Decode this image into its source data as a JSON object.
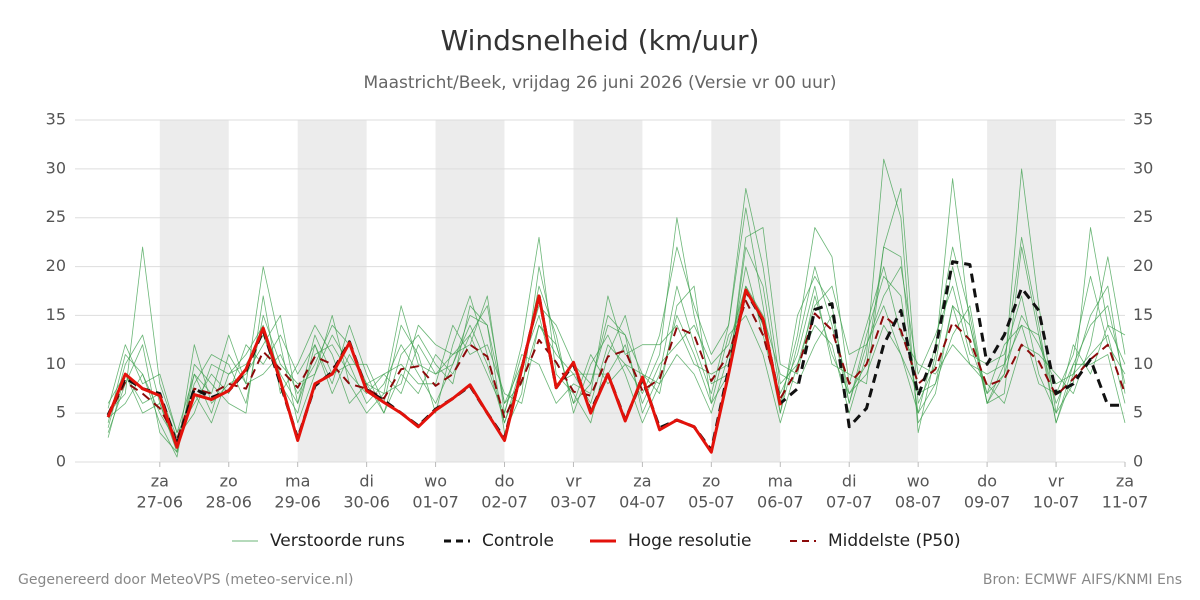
{
  "chart_data": {
    "type": "line",
    "title": "Windsnelheid (km/uur)",
    "subtitle": "Maastricht/Beek, vrijdag 26 juni 2026 (Versie vr 00 uur)",
    "footer_left": "Gegenereerd door MeteoVPS (meteo-service.nl)",
    "footer_right": "Bron: ECMWF AIFS/KNMI Ens",
    "shade_alternate_days": true,
    "grid": true,
    "legend": "bottom",
    "xlim": [
      -0.23,
      15
    ],
    "ylim": [
      0,
      35
    ],
    "yticks": [
      0,
      5,
      10,
      15,
      20,
      25,
      30,
      35
    ],
    "xticks": [
      {
        "value": 1,
        "label": [
          "za",
          "27-06"
        ]
      },
      {
        "value": 2,
        "label": [
          "zo",
          "28-06"
        ]
      },
      {
        "value": 3,
        "label": [
          "ma",
          "29-06"
        ]
      },
      {
        "value": 4,
        "label": [
          "di",
          "30-06"
        ]
      },
      {
        "value": 5,
        "label": [
          "wo",
          "01-07"
        ]
      },
      {
        "value": 6,
        "label": [
          "do",
          "02-07"
        ]
      },
      {
        "value": 7,
        "label": [
          "vr",
          "03-07"
        ]
      },
      {
        "value": 8,
        "label": [
          "za",
          "04-07"
        ]
      },
      {
        "value": 9,
        "label": [
          "zo",
          "05-07"
        ]
      },
      {
        "value": 10,
        "label": [
          "ma",
          "06-07"
        ]
      },
      {
        "value": 11,
        "label": [
          "di",
          "07-07"
        ]
      },
      {
        "value": 12,
        "label": [
          "wo",
          "08-07"
        ]
      },
      {
        "value": 13,
        "label": [
          "do",
          "09-07"
        ]
      },
      {
        "value": 14,
        "label": [
          "vr",
          "10-07"
        ]
      },
      {
        "value": 15,
        "label": [
          "za",
          "11-07"
        ]
      }
    ],
    "x": [
      0.25,
      0.5,
      0.75,
      1,
      1.25,
      1.5,
      1.75,
      2,
      2.25,
      2.5,
      2.75,
      3,
      3.25,
      3.5,
      3.75,
      4,
      4.25,
      4.5,
      4.75,
      5,
      5.25,
      5.5,
      5.75,
      6,
      6.25,
      6.5,
      6.75,
      7,
      7.25,
      7.5,
      7.75,
      8,
      8.25,
      8.5,
      8.75,
      9,
      9.25,
      9.5,
      9.75,
      10,
      10.25,
      10.5,
      10.75,
      11,
      11.25,
      11.5,
      11.75,
      12,
      12.25,
      12.5,
      12.75,
      13,
      13.25,
      13.5,
      13.75,
      14,
      14.25,
      14.5,
      14.75,
      15
    ],
    "series": [
      {
        "name": "Verstoorde runs",
        "color": "#3a9e4a",
        "dash": "solid",
        "width": 0.8,
        "members": [
          [
            3.5,
            10,
            13,
            6,
            1,
            9,
            5,
            11,
            8,
            20,
            12,
            4,
            9,
            13,
            10,
            6,
            8,
            12,
            9,
            6,
            10,
            15,
            14,
            3,
            7,
            20,
            12,
            6,
            8,
            14,
            13,
            5,
            9,
            18,
            12,
            7,
            14,
            26,
            16,
            5,
            12,
            20,
            14,
            6,
            13,
            19,
            17,
            5,
            12,
            22,
            15,
            6,
            10,
            23,
            14,
            4,
            10,
            14,
            16,
            8
          ],
          [
            5,
            7,
            22,
            8,
            3,
            6,
            9,
            7,
            12,
            10,
            13,
            9,
            12,
            8,
            14,
            9,
            5,
            11,
            13,
            10,
            8,
            16,
            14,
            6,
            10,
            15,
            8,
            9,
            6,
            12,
            10,
            9,
            7,
            16,
            18,
            6,
            9,
            22,
            18,
            7,
            11,
            18,
            10,
            9,
            8,
            22,
            21,
            4,
            7,
            16,
            10,
            8,
            6,
            12,
            11,
            9,
            7,
            12,
            21,
            11
          ],
          [
            4,
            11,
            9,
            4,
            0.5,
            10,
            8,
            6,
            5,
            17,
            7,
            10,
            14,
            11,
            6,
            8,
            7,
            8,
            14,
            12,
            11,
            13,
            9,
            5,
            12,
            23,
            9,
            7,
            4,
            11,
            15,
            8,
            13,
            22,
            16,
            11,
            14,
            28,
            20,
            8,
            10,
            16,
            18,
            11,
            12,
            17,
            20,
            9,
            13,
            18,
            11,
            10,
            11,
            17,
            9,
            5,
            12,
            9,
            14,
            10
          ],
          [
            6,
            9,
            6,
            7,
            2.5,
            5,
            10,
            9,
            11,
            14,
            9,
            6,
            11,
            12,
            9,
            7,
            9,
            10,
            8,
            8,
            14,
            11,
            12,
            7,
            6,
            14,
            11,
            9,
            9,
            9,
            12,
            6,
            10,
            12,
            14,
            10,
            12,
            18,
            15,
            9,
            8,
            12,
            15,
            7,
            9,
            14,
            11,
            7,
            8,
            13,
            16,
            6,
            9,
            15,
            12,
            8,
            9,
            11,
            13,
            6
          ],
          [
            3,
            8,
            12,
            3,
            1,
            12,
            6,
            8,
            9,
            12,
            15,
            6,
            13,
            9,
            10,
            10,
            6,
            14,
            11,
            5,
            12,
            17,
            11,
            4,
            9,
            18,
            13,
            5,
            10,
            13,
            9,
            4,
            8,
            15,
            11,
            6,
            13,
            15,
            11,
            4,
            10,
            14,
            12,
            5,
            11,
            31,
            25,
            3,
            11,
            29,
            14,
            6,
            7,
            22,
            13,
            4,
            9,
            15,
            18,
            7
          ],
          [
            4.5,
            6,
            9,
            5,
            2,
            8,
            11,
            10,
            6,
            15,
            10,
            8,
            9,
            15,
            8,
            5,
            7,
            16,
            10,
            9,
            11,
            12,
            17,
            5,
            11,
            10,
            6,
            8,
            7,
            17,
            11,
            12,
            12,
            14,
            10,
            9,
            10,
            20,
            13,
            6,
            13,
            24,
            21,
            8,
            14,
            20,
            13,
            10,
            9,
            12,
            10,
            9,
            10,
            14,
            8,
            7,
            11,
            19,
            12,
            9
          ],
          [
            5.5,
            12,
            8,
            9,
            3,
            9,
            7,
            13,
            8,
            9,
            11,
            7,
            10,
            14,
            12,
            8,
            5,
            9,
            7,
            11,
            9,
            13,
            16,
            6,
            8,
            14,
            12,
            6,
            11,
            8,
            10,
            7,
            11,
            25,
            15,
            8,
            9,
            23,
            24,
            10,
            9,
            17,
            11,
            7,
            10,
            22,
            28,
            6,
            10,
            20,
            12,
            7,
            9,
            30,
            16,
            5,
            8,
            24,
            14,
            13
          ],
          [
            2.5,
            9,
            5,
            6,
            1.5,
            7,
            4,
            9,
            10,
            13,
            8,
            5,
            12,
            7,
            11,
            8,
            9,
            7,
            12,
            9,
            10,
            14,
            10,
            4,
            10,
            16,
            14,
            10,
            8,
            15,
            13,
            9,
            8,
            11,
            9,
            5,
            11,
            18,
            14,
            5,
            15,
            19,
            16,
            6,
            12,
            16,
            11,
            5,
            8,
            16,
            14,
            7,
            12,
            14,
            13,
            6,
            10,
            10,
            11,
            4
          ]
        ]
      },
      {
        "name": "Controle",
        "color": "#111111",
        "dash": "dashed",
        "width": 3,
        "values": [
          4.8,
          8.6,
          7.5,
          7,
          1.8,
          7.5,
          6.6,
          7.3,
          9.3,
          13.5,
          8,
          2.4,
          7.8,
          9.2,
          12.3,
          7.4,
          6.3,
          5,
          3.7,
          5.4,
          6.5,
          7.8,
          5,
          2.4,
          9.5,
          17,
          7.6,
          10,
          5.2,
          9,
          4.3,
          8.5,
          3.5,
          4.3,
          3.6,
          1.2,
          9.5,
          17.5,
          14.5,
          6,
          7.5,
          15.6,
          16.2,
          3.6,
          5.5,
          12,
          15.5,
          6.8,
          11.5,
          20.5,
          20.2,
          10,
          13,
          17.8,
          15.5,
          7,
          8,
          10.5,
          5.8,
          5.8
        ]
      },
      {
        "name": "Hoge resolutie",
        "color": "#e3120b",
        "dash": "solid",
        "width": 3,
        "values": [
          4.6,
          9,
          7.5,
          6.8,
          1.5,
          6.9,
          6.4,
          7.3,
          9.5,
          13.7,
          8.3,
          2.2,
          8,
          9,
          12.2,
          7.3,
          6.1,
          5,
          3.6,
          5.3,
          6.5,
          7.9,
          5,
          2.2,
          9.5,
          17,
          7.6,
          10.2,
          5,
          9,
          4.2,
          8.7,
          3.3,
          4.3,
          3.6,
          1,
          9,
          17.6,
          14.6,
          5.8,
          null,
          null,
          null,
          null,
          null,
          null,
          null,
          null,
          null,
          null,
          null,
          null,
          null,
          null,
          null,
          null,
          null,
          null,
          null,
          null
        ]
      },
      {
        "name": "Middelste (P50)",
        "color": "#8b0a0a",
        "dash": "dashed",
        "width": 2,
        "values": [
          4.6,
          8.2,
          7,
          5.5,
          2.3,
          7.5,
          7,
          8,
          7.5,
          11.3,
          9.5,
          7.6,
          10.8,
          10,
          8,
          7.5,
          6.5,
          9.5,
          9.8,
          7.8,
          9,
          12,
          10.8,
          4.5,
          8.3,
          12.5,
          10.2,
          7.2,
          6.8,
          10.8,
          11.4,
          7.3,
          8.5,
          13.8,
          13,
          8.3,
          11,
          16.5,
          13,
          6.5,
          9.5,
          15.2,
          13.5,
          8,
          10,
          15,
          13.5,
          8,
          9.5,
          14.3,
          12.5,
          7.8,
          8.5,
          12,
          10.3,
          6.8,
          8.5,
          10.5,
          12,
          7
        ]
      }
    ]
  }
}
